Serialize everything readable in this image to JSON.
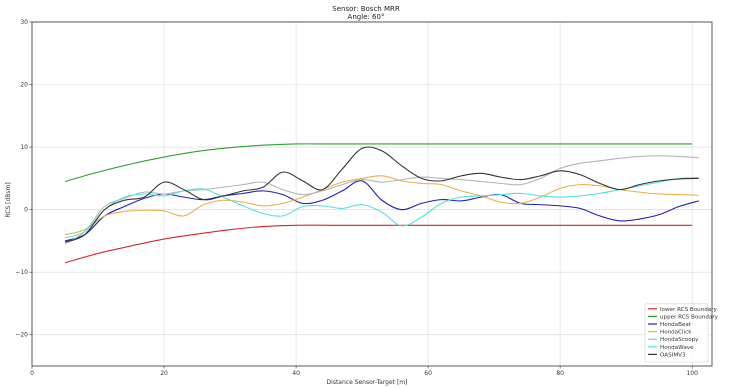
{
  "chart_data": {
    "type": "line",
    "title": "Sensor: Bosch MRR",
    "subtitle": "Angle: 60°",
    "xlabel": "Distance Sensor-Target [m]",
    "ylabel": "RCS [dBsm]",
    "xlim": [
      0,
      103
    ],
    "ylim": [
      -25,
      30
    ],
    "xticks": [
      0,
      20,
      40,
      60,
      80,
      100
    ],
    "yticks": [
      -20,
      -10,
      0,
      10,
      20,
      30
    ],
    "grid": true,
    "legend_position": "bottom-right",
    "series": [
      {
        "name": "lower RCS Boundary",
        "color": "#d62728",
        "x": [
          5,
          10,
          15,
          20,
          25,
          30,
          35,
          40,
          45,
          50,
          55,
          60,
          65,
          70,
          75,
          80,
          85,
          90,
          95,
          100
        ],
        "y": [
          -8.5,
          -7.0,
          -5.8,
          -4.7,
          -3.9,
          -3.2,
          -2.7,
          -2.5,
          -2.5,
          -2.5,
          -2.5,
          -2.5,
          -2.5,
          -2.5,
          -2.5,
          -2.5,
          -2.5,
          -2.5,
          -2.5,
          -2.5
        ]
      },
      {
        "name": "upper RCS Boundary",
        "color": "#2ca02c",
        "x": [
          5,
          10,
          15,
          20,
          25,
          30,
          35,
          40,
          45,
          50,
          55,
          60,
          65,
          70,
          75,
          80,
          85,
          90,
          95,
          100
        ],
        "y": [
          4.5,
          6.0,
          7.3,
          8.4,
          9.3,
          9.9,
          10.3,
          10.5,
          10.5,
          10.5,
          10.5,
          10.5,
          10.5,
          10.5,
          10.5,
          10.5,
          10.5,
          10.5,
          10.5,
          10.5
        ]
      },
      {
        "name": "HondaBeat",
        "color": "#1f1fb4",
        "x": [
          5,
          8,
          11,
          14,
          17,
          20,
          23,
          26,
          29,
          32,
          35,
          38,
          41,
          44,
          47,
          50,
          53,
          56,
          59,
          62,
          65,
          68,
          71,
          74,
          77,
          80,
          83,
          86,
          89,
          92,
          95,
          98,
          101
        ],
        "y": [
          -5.0,
          -4.0,
          -1.0,
          0.5,
          1.8,
          2.5,
          2.0,
          1.6,
          2.2,
          2.6,
          3.0,
          2.4,
          1.0,
          1.5,
          3.0,
          4.6,
          1.5,
          0.0,
          1.0,
          1.6,
          1.4,
          2.0,
          2.4,
          1.0,
          0.8,
          0.6,
          0.2,
          -1.0,
          -1.8,
          -1.5,
          -0.8,
          0.5,
          1.4
        ]
      },
      {
        "name": "HondaClick",
        "color": "#e8b04a",
        "x": [
          5,
          8,
          11,
          14,
          17,
          20,
          23,
          26,
          29,
          32,
          35,
          38,
          41,
          44,
          47,
          50,
          53,
          56,
          59,
          62,
          65,
          68,
          71,
          74,
          77,
          80,
          83,
          86,
          89,
          92,
          95,
          98,
          101
        ],
        "y": [
          -4.0,
          -3.2,
          -1.0,
          -0.3,
          -0.1,
          -0.2,
          -1.0,
          0.8,
          1.5,
          1.2,
          0.6,
          1.0,
          2.0,
          3.2,
          4.4,
          5.0,
          5.4,
          4.6,
          4.2,
          4.0,
          3.0,
          2.2,
          1.2,
          1.0,
          2.0,
          3.4,
          4.0,
          3.8,
          3.2,
          2.8,
          2.5,
          2.4,
          2.3
        ]
      },
      {
        "name": "HondaScoopy",
        "color": "#b4b4b4",
        "x": [
          5,
          8,
          11,
          14,
          17,
          20,
          23,
          26,
          29,
          32,
          35,
          38,
          41,
          44,
          47,
          50,
          53,
          56,
          59,
          62,
          65,
          68,
          71,
          74,
          77,
          80,
          83,
          86,
          89,
          92,
          95,
          98,
          101
        ],
        "y": [
          -5.5,
          -3.5,
          0.5,
          1.8,
          2.8,
          2.5,
          3.0,
          3.2,
          3.6,
          4.0,
          4.4,
          3.2,
          2.4,
          3.0,
          4.0,
          4.8,
          4.4,
          4.8,
          5.2,
          5.0,
          4.8,
          4.5,
          4.2,
          4.0,
          5.0,
          6.6,
          7.4,
          7.8,
          8.2,
          8.5,
          8.6,
          8.5,
          8.3
        ]
      },
      {
        "name": "HondaWave",
        "color": "#4de2e2",
        "x": [
          5,
          8,
          11,
          14,
          17,
          20,
          23,
          26,
          29,
          32,
          35,
          38,
          41,
          44,
          47,
          50,
          53,
          56,
          59,
          62,
          65,
          68,
          71,
          74,
          77,
          80,
          83,
          86,
          89,
          92,
          95,
          98,
          101
        ],
        "y": [
          -4.5,
          -3.5,
          0.0,
          2.0,
          2.5,
          2.2,
          3.0,
          3.3,
          2.0,
          0.6,
          -0.6,
          -1.0,
          0.5,
          0.6,
          0.2,
          0.8,
          -0.4,
          -2.6,
          -1.2,
          1.0,
          2.0,
          2.2,
          2.4,
          2.6,
          2.2,
          2.0,
          2.2,
          2.6,
          3.2,
          3.8,
          4.4,
          5.0,
          5.1
        ]
      },
      {
        "name": "OASIMV3",
        "color": "#333333",
        "x": [
          5,
          8,
          11,
          14,
          17,
          20,
          23,
          26,
          29,
          32,
          35,
          38,
          41,
          44,
          47,
          50,
          53,
          56,
          59,
          62,
          65,
          68,
          71,
          74,
          77,
          80,
          83,
          86,
          89,
          92,
          95,
          98,
          101
        ],
        "y": [
          -5.2,
          -4.0,
          0.0,
          1.5,
          2.0,
          4.4,
          3.2,
          1.6,
          2.2,
          3.0,
          3.6,
          6.0,
          4.6,
          3.2,
          6.5,
          9.8,
          9.4,
          7.0,
          5.0,
          4.6,
          5.4,
          5.8,
          5.2,
          4.8,
          5.4,
          6.2,
          5.6,
          4.2,
          3.2,
          4.0,
          4.6,
          4.9,
          5.0
        ]
      }
    ]
  }
}
